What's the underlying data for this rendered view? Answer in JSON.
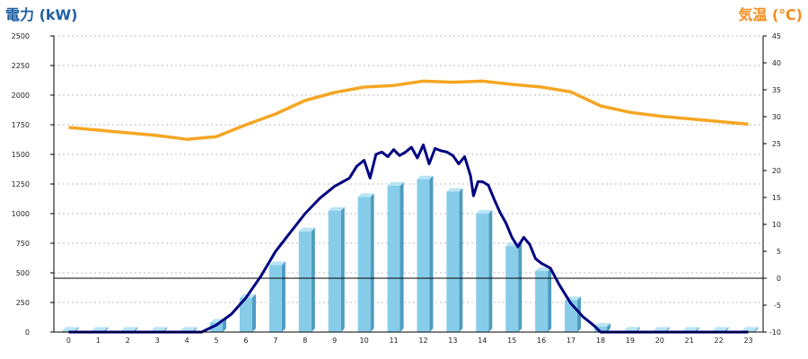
{
  "chart_data": {
    "type": "bar",
    "xlabels": [
      "0",
      "1",
      "2",
      "3",
      "4",
      "5",
      "6",
      "7",
      "8",
      "9",
      "10",
      "11",
      "12",
      "13",
      "14",
      "15",
      "16",
      "17",
      "18",
      "19",
      "20",
      "21",
      "22",
      "23"
    ],
    "left_axis": {
      "title": "電力 (kW)",
      "title_color": "#1f5fa3",
      "min": 0,
      "max": 2500,
      "ticks": [
        "0",
        "250",
        "500",
        "750",
        "1000",
        "1250",
        "1500",
        "1750",
        "2000",
        "2250",
        "2500"
      ]
    },
    "right_axis": {
      "title": "気温 (℃)",
      "title_color": "#f28c1e",
      "min": -10,
      "max": 45,
      "ticks": [
        "-10",
        "-5",
        "0",
        "5",
        "10",
        "15",
        "20",
        "25",
        "30",
        "35",
        "40",
        "45"
      ]
    },
    "grid": "horizontal dotted",
    "series": [
      {
        "type": "bar",
        "axis": "left",
        "color": "#87cdea",
        "values": [
          12,
          12,
          12,
          12,
          12,
          80,
          290,
          565,
          850,
          1025,
          1140,
          1235,
          1290,
          1185,
          1000,
          725,
          515,
          270,
          45,
          12,
          12,
          12,
          12,
          12
        ]
      },
      {
        "type": "line",
        "axis": "left",
        "color": "#000080",
        "points": [
          [
            0,
            0
          ],
          [
            4.5,
            0
          ],
          [
            5,
            60
          ],
          [
            5.5,
            150
          ],
          [
            6,
            290
          ],
          [
            6.5,
            470
          ],
          [
            7,
            680
          ],
          [
            7.5,
            840
          ],
          [
            8,
            1000
          ],
          [
            8.5,
            1130
          ],
          [
            9,
            1230
          ],
          [
            9.5,
            1300
          ],
          [
            9.75,
            1400
          ],
          [
            10,
            1450
          ],
          [
            10.2,
            1300
          ],
          [
            10.4,
            1500
          ],
          [
            10.6,
            1520
          ],
          [
            10.8,
            1480
          ],
          [
            11,
            1540
          ],
          [
            11.2,
            1490
          ],
          [
            11.4,
            1520
          ],
          [
            11.6,
            1560
          ],
          [
            11.8,
            1470
          ],
          [
            12,
            1580
          ],
          [
            12.2,
            1420
          ],
          [
            12.4,
            1550
          ],
          [
            12.6,
            1530
          ],
          [
            12.8,
            1520
          ],
          [
            13,
            1490
          ],
          [
            13.2,
            1420
          ],
          [
            13.4,
            1480
          ],
          [
            13.6,
            1320
          ],
          [
            13.7,
            1150
          ],
          [
            13.85,
            1270
          ],
          [
            14,
            1270
          ],
          [
            14.2,
            1240
          ],
          [
            14.4,
            1120
          ],
          [
            14.6,
            1010
          ],
          [
            14.8,
            920
          ],
          [
            15,
            800
          ],
          [
            15.2,
            720
          ],
          [
            15.4,
            800
          ],
          [
            15.6,
            740
          ],
          [
            15.8,
            620
          ],
          [
            16,
            580
          ],
          [
            16.3,
            540
          ],
          [
            16.6,
            400
          ],
          [
            17,
            240
          ],
          [
            17.4,
            130
          ],
          [
            17.8,
            50
          ],
          [
            18,
            0
          ],
          [
            23,
            0
          ]
        ]
      },
      {
        "type": "line",
        "axis": "right",
        "color": "#f5a623",
        "values": [
          28,
          27.5,
          27,
          26.5,
          25.8,
          26.3,
          28.5,
          30.5,
          33,
          34.5,
          35.5,
          35.8,
          36.6,
          36.4,
          36.6,
          36,
          35.5,
          34.6,
          32,
          30.8,
          30.1,
          29.6,
          29.1,
          28.6
        ]
      }
    ],
    "reference_line": {
      "axis": "right",
      "value": 0,
      "color": "#000000"
    }
  }
}
